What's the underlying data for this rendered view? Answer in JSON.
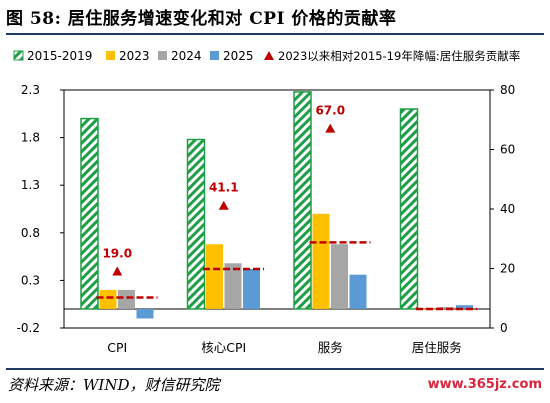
{
  "header": {
    "figure_no": "图 58:",
    "title": "居住服务增速变化和对 CPI 价格的贡献率"
  },
  "footer": {
    "source": "资料来源：WIND，财信研究院",
    "watermark": "www.365jz.com"
  },
  "colors": {
    "s2015_2019": "#1e9e46",
    "s2023": "#ffc000",
    "s2024": "#a6a6a6",
    "s2025": "#5b9bd5",
    "contrib": "#c00000",
    "rule": "#1f3864"
  },
  "chart_data": {
    "type": "bar",
    "categories": [
      "CPI",
      "核心CPI",
      "服务",
      "居住服务"
    ],
    "series": [
      {
        "name": "2015-2019",
        "axis": "left",
        "values": [
          2.0,
          1.78,
          2.28,
          2.1
        ]
      },
      {
        "name": "2023",
        "axis": "left",
        "values": [
          0.2,
          0.68,
          1.0,
          0.0
        ]
      },
      {
        "name": "2024",
        "axis": "left",
        "values": [
          0.2,
          0.48,
          0.68,
          0.02
        ]
      },
      {
        "name": "2025",
        "axis": "left",
        "values": [
          -0.1,
          0.42,
          0.36,
          0.04
        ]
      }
    ],
    "contribution": {
      "name": "2023以来相对2015-19年降幅:居住服务贡献率",
      "axis": "right",
      "values": [
        19.0,
        41.1,
        67.0,
        null
      ],
      "labels": [
        "19.0",
        "41.1",
        "67.0",
        ""
      ]
    },
    "dashes_left": [
      0.12,
      0.42,
      0.7,
      0.0
    ],
    "y_left": {
      "ylim": [
        -0.2,
        2.3
      ],
      "ticks": [
        -0.2,
        0.3,
        0.8,
        1.3,
        1.8,
        2.3
      ],
      "tick_labels": [
        "-0.2",
        "0.3",
        "0.8",
        "1.3",
        "1.8",
        "2.3"
      ]
    },
    "y_right": {
      "ylim": [
        0,
        80
      ],
      "ticks": [
        0,
        20,
        40,
        60,
        80
      ],
      "tick_labels": [
        "0",
        "20",
        "40",
        "60",
        "80"
      ]
    },
    "legend_position": "top",
    "grid": false
  }
}
